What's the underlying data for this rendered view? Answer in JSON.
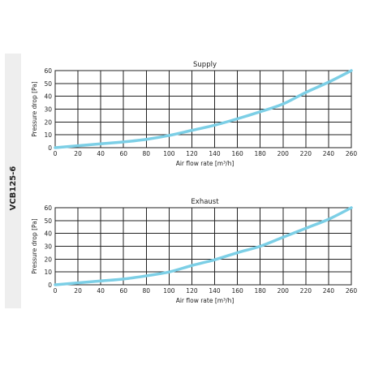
{
  "model_label": "VCB125-6",
  "chart_data": [
    {
      "type": "line",
      "title": "Supply",
      "xlabel": "Air flow rate [m³/h]",
      "ylabel": "Pressure drop [Pa]",
      "xlim": [
        0,
        260
      ],
      "ylim": [
        0,
        60
      ],
      "x_ticks": [
        0,
        20,
        40,
        60,
        80,
        100,
        120,
        140,
        160,
        180,
        200,
        220,
        240,
        260
      ],
      "y_ticks": [
        0,
        10,
        20,
        30,
        40,
        50,
        60
      ],
      "grid": true,
      "line_color": "#7ccfe6",
      "series": [
        {
          "x": [
            0,
            20,
            40,
            60,
            80,
            100,
            120,
            140,
            160,
            180,
            200,
            220,
            240,
            260
          ],
          "values": [
            0,
            1.5,
            3,
            4.5,
            6.5,
            9.5,
            13.5,
            17.5,
            22.5,
            28,
            34,
            43,
            51,
            60
          ]
        }
      ]
    },
    {
      "type": "line",
      "title": "Exhaust",
      "xlabel": "Air flow rate [m³/h]",
      "ylabel": "Pressure drop [Pa]",
      "xlim": [
        0,
        260
      ],
      "ylim": [
        0,
        60
      ],
      "x_ticks": [
        0,
        20,
        40,
        60,
        80,
        100,
        120,
        140,
        160,
        180,
        200,
        220,
        240,
        260
      ],
      "y_ticks": [
        0,
        10,
        20,
        30,
        40,
        50,
        60
      ],
      "grid": true,
      "line_color": "#7ccfe6",
      "series": [
        {
          "x": [
            0,
            20,
            40,
            60,
            80,
            100,
            120,
            140,
            160,
            180,
            200,
            220,
            240,
            260
          ],
          "values": [
            0,
            1.5,
            3,
            4.5,
            7,
            10,
            15,
            19.5,
            25,
            30,
            37,
            44,
            51,
            60
          ]
        }
      ]
    }
  ]
}
